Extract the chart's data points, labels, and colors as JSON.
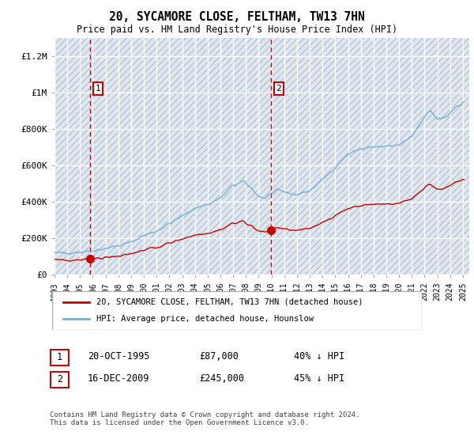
{
  "title": "20, SYCAMORE CLOSE, FELTHAM, TW13 7HN",
  "subtitle": "Price paid vs. HM Land Registry's House Price Index (HPI)",
  "ylim": [
    0,
    1300000
  ],
  "yticks": [
    0,
    200000,
    400000,
    600000,
    800000,
    1000000,
    1200000
  ],
  "ytick_labels": [
    "£0",
    "£200K",
    "£400K",
    "£600K",
    "£800K",
    "£1M",
    "£1.2M"
  ],
  "background_color": "#ffffff",
  "plot_bg_color": "#dce9f5",
  "hatch_color": "#c0c0c0",
  "grid_color": "#ffffff",
  "red_line_color": "#cc0000",
  "blue_line_color": "#7aadd4",
  "sale1_date": 1995.8,
  "sale1_price": 87000,
  "sale1_label": "1",
  "sale2_date": 2009.96,
  "sale2_price": 245000,
  "sale2_label": "2",
  "xmin": 1993,
  "xmax": 2025.5,
  "xticks": [
    1993,
    1994,
    1995,
    1996,
    1997,
    1998,
    1999,
    2000,
    2001,
    2002,
    2003,
    2004,
    2005,
    2006,
    2007,
    2008,
    2009,
    2010,
    2011,
    2012,
    2013,
    2014,
    2015,
    2016,
    2017,
    2018,
    2019,
    2020,
    2021,
    2022,
    2023,
    2024,
    2025
  ],
  "legend_label_red": "20, SYCAMORE CLOSE, FELTHAM, TW13 7HN (detached house)",
  "legend_label_blue": "HPI: Average price, detached house, Hounslow",
  "note1_num": "1",
  "note1_date": "20-OCT-1995",
  "note1_price": "£87,000",
  "note1_hpi": "40% ↓ HPI",
  "note2_num": "2",
  "note2_date": "16-DEC-2009",
  "note2_price": "£245,000",
  "note2_hpi": "45% ↓ HPI",
  "footer": "Contains HM Land Registry data © Crown copyright and database right 2024.\nThis data is licensed under the Open Government Licence v3.0."
}
